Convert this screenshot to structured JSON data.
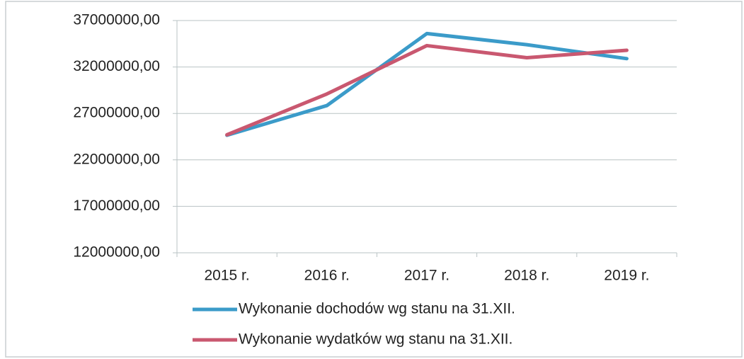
{
  "chart_data": {
    "type": "line",
    "categories": [
      "2015 r.",
      "2016 r.",
      "2017 r.",
      "2018 r.",
      "2019 r."
    ],
    "series": [
      {
        "name": "Wykonanie dochodów wg stanu na 31.XII.",
        "color": "#3b9bc9",
        "values": [
          24650000,
          27850000,
          35600000,
          34400000,
          32900000
        ]
      },
      {
        "name": "Wykonanie wydatków wg stanu na 31.XII.",
        "color": "#c95870",
        "values": [
          24700000,
          29100000,
          34300000,
          33000000,
          33800000
        ]
      }
    ],
    "ylim": [
      12000000,
      37000000
    ],
    "yticks": [
      {
        "value": 12000000,
        "label": "12000000,00"
      },
      {
        "value": 17000000,
        "label": "17000000,00"
      },
      {
        "value": 22000000,
        "label": "22000000,00"
      },
      {
        "value": 27000000,
        "label": "27000000,00"
      },
      {
        "value": 32000000,
        "label": "32000000,00"
      },
      {
        "value": 37000000,
        "label": "37000000,00"
      }
    ],
    "grid": true,
    "legend": "bottom"
  }
}
